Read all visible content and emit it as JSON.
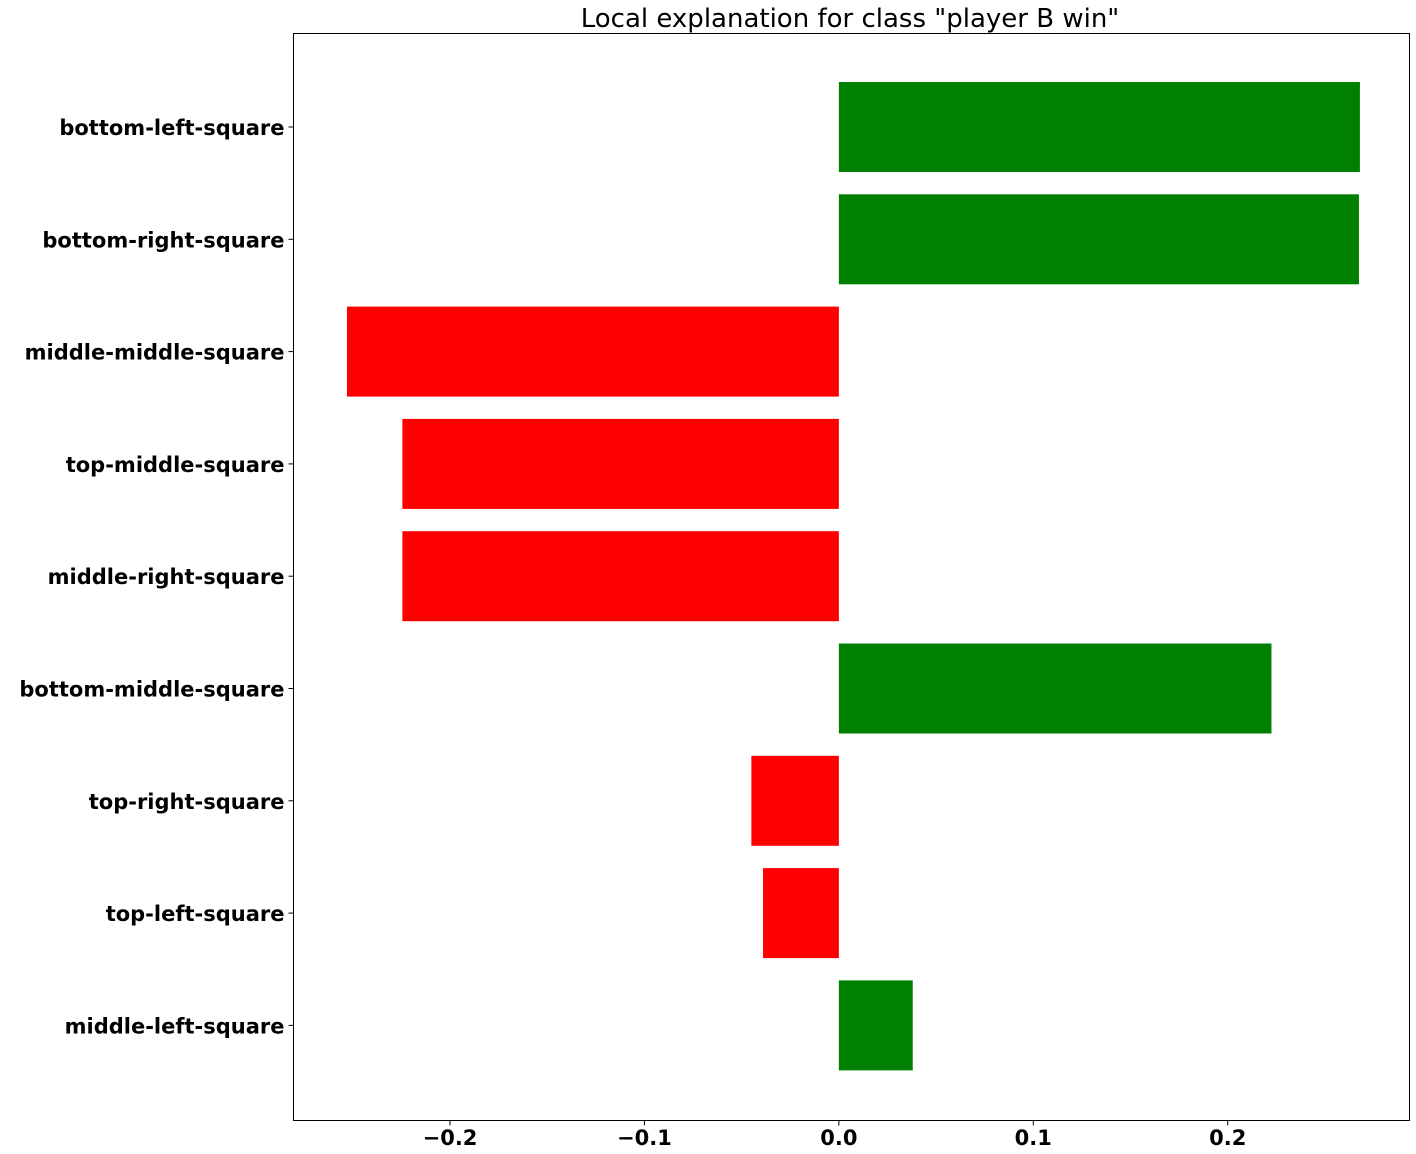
{
  "chart_data": {
    "type": "bar",
    "orientation": "horizontal",
    "title": "Local explanation for class \"player B win\"",
    "xlabel": "",
    "ylabel": "",
    "categories": [
      "bottom-left-square",
      "bottom-right-square",
      "middle-middle-square",
      "top-middle-square",
      "middle-right-square",
      "bottom-middle-square",
      "top-right-square",
      "top-left-square",
      "middle-left-square"
    ],
    "values": [
      0.268,
      0.2675,
      -0.253,
      -0.2245,
      -0.2245,
      0.2225,
      -0.045,
      -0.039,
      0.038
    ],
    "xlim": [
      -0.2805,
      0.2935
    ],
    "xticks": [
      -0.2,
      -0.1,
      0.0,
      0.1,
      0.2
    ],
    "xtick_labels": [
      "−0.2",
      "−0.1",
      "0.0",
      "0.1",
      "0.2"
    ],
    "colors": {
      "positive": "#008000",
      "negative": "#ff0000"
    },
    "grid": false,
    "legend": "none"
  }
}
